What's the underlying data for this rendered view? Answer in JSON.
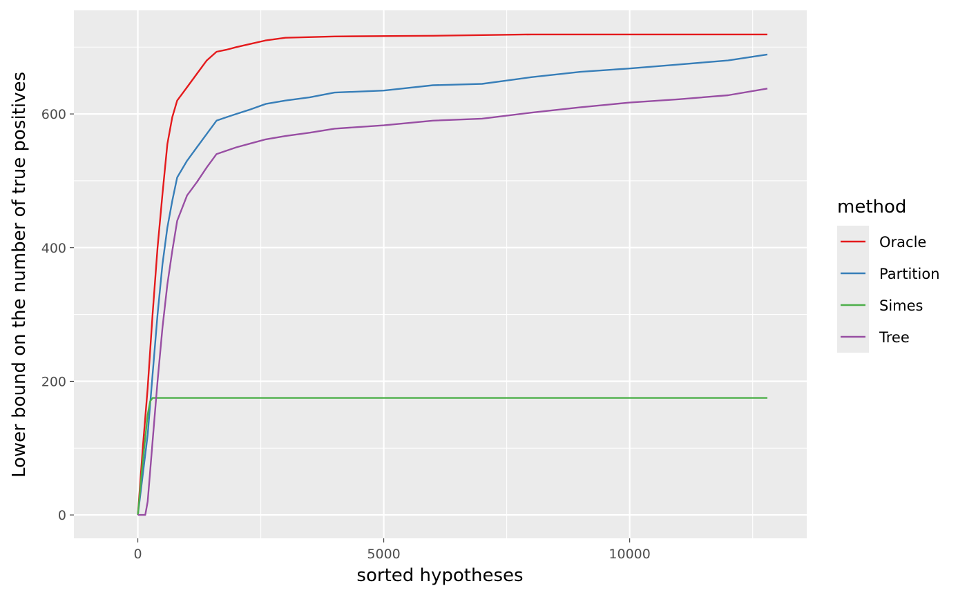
{
  "chart_data": {
    "type": "line",
    "xlabel": "sorted hypotheses",
    "ylabel": "Lower bound on the number of true positives",
    "xlim": [
      -1300,
      13600
    ],
    "ylim": [
      -35,
      755
    ],
    "x_ticks": [
      0,
      5000,
      10000
    ],
    "x_tick_labels": [
      "0",
      "5000",
      "10000"
    ],
    "y_ticks": [
      0,
      200,
      400,
      600
    ],
    "y_tick_labels": [
      "0",
      "200",
      "400",
      "600"
    ],
    "x_minor_ticks": [
      2500,
      7500,
      12500
    ],
    "y_minor_ticks": [
      100,
      300,
      500,
      700
    ],
    "grid": true,
    "legend_title": "method",
    "legend_position": "right",
    "series": [
      {
        "name": "Oracle",
        "color": "#e41a1c",
        "points": [
          [
            0,
            0
          ],
          [
            100,
            100
          ],
          [
            200,
            190
          ],
          [
            300,
            300
          ],
          [
            400,
            400
          ],
          [
            500,
            480
          ],
          [
            600,
            555
          ],
          [
            700,
            595
          ],
          [
            800,
            620
          ],
          [
            1000,
            640
          ],
          [
            1200,
            660
          ],
          [
            1400,
            680
          ],
          [
            1600,
            693
          ],
          [
            1800,
            696
          ],
          [
            2000,
            700
          ],
          [
            2300,
            705
          ],
          [
            2600,
            710
          ],
          [
            3000,
            714
          ],
          [
            4000,
            716
          ],
          [
            6000,
            717
          ],
          [
            8000,
            719
          ],
          [
            10000,
            719
          ],
          [
            12000,
            719
          ],
          [
            12800,
            719
          ]
        ]
      },
      {
        "name": "Partition",
        "color": "#377eb8",
        "points": [
          [
            0,
            0
          ],
          [
            100,
            60
          ],
          [
            200,
            120
          ],
          [
            300,
            210
          ],
          [
            400,
            300
          ],
          [
            500,
            375
          ],
          [
            600,
            430
          ],
          [
            700,
            470
          ],
          [
            800,
            505
          ],
          [
            1000,
            530
          ],
          [
            1200,
            550
          ],
          [
            1400,
            570
          ],
          [
            1600,
            590
          ],
          [
            1800,
            595
          ],
          [
            2000,
            600
          ],
          [
            2300,
            607
          ],
          [
            2600,
            615
          ],
          [
            3000,
            620
          ],
          [
            3500,
            625
          ],
          [
            4000,
            632
          ],
          [
            5000,
            635
          ],
          [
            6000,
            643
          ],
          [
            7000,
            645
          ],
          [
            7500,
            650
          ],
          [
            8000,
            655
          ],
          [
            9000,
            663
          ],
          [
            10000,
            668
          ],
          [
            11000,
            674
          ],
          [
            12000,
            680
          ],
          [
            12800,
            689
          ]
        ]
      },
      {
        "name": "Simes",
        "color": "#4daf4a",
        "points": [
          [
            0,
            0
          ],
          [
            100,
            80
          ],
          [
            200,
            150
          ],
          [
            250,
            170
          ],
          [
            300,
            175
          ],
          [
            1000,
            175
          ],
          [
            5000,
            175
          ],
          [
            10000,
            175
          ],
          [
            12800,
            175
          ]
        ]
      },
      {
        "name": "Tree",
        "color": "#984ea3",
        "points": [
          [
            0,
            0
          ],
          [
            150,
            0
          ],
          [
            200,
            20
          ],
          [
            300,
            110
          ],
          [
            400,
            200
          ],
          [
            500,
            280
          ],
          [
            600,
            345
          ],
          [
            700,
            395
          ],
          [
            800,
            440
          ],
          [
            1000,
            478
          ],
          [
            1200,
            498
          ],
          [
            1400,
            520
          ],
          [
            1600,
            540
          ],
          [
            1800,
            545
          ],
          [
            2000,
            550
          ],
          [
            2300,
            556
          ],
          [
            2600,
            562
          ],
          [
            3000,
            567
          ],
          [
            3500,
            572
          ],
          [
            4000,
            578
          ],
          [
            5000,
            583
          ],
          [
            6000,
            590
          ],
          [
            7000,
            593
          ],
          [
            8000,
            602
          ],
          [
            9000,
            610
          ],
          [
            10000,
            617
          ],
          [
            11000,
            622
          ],
          [
            12000,
            628
          ],
          [
            12800,
            638
          ]
        ]
      }
    ]
  }
}
